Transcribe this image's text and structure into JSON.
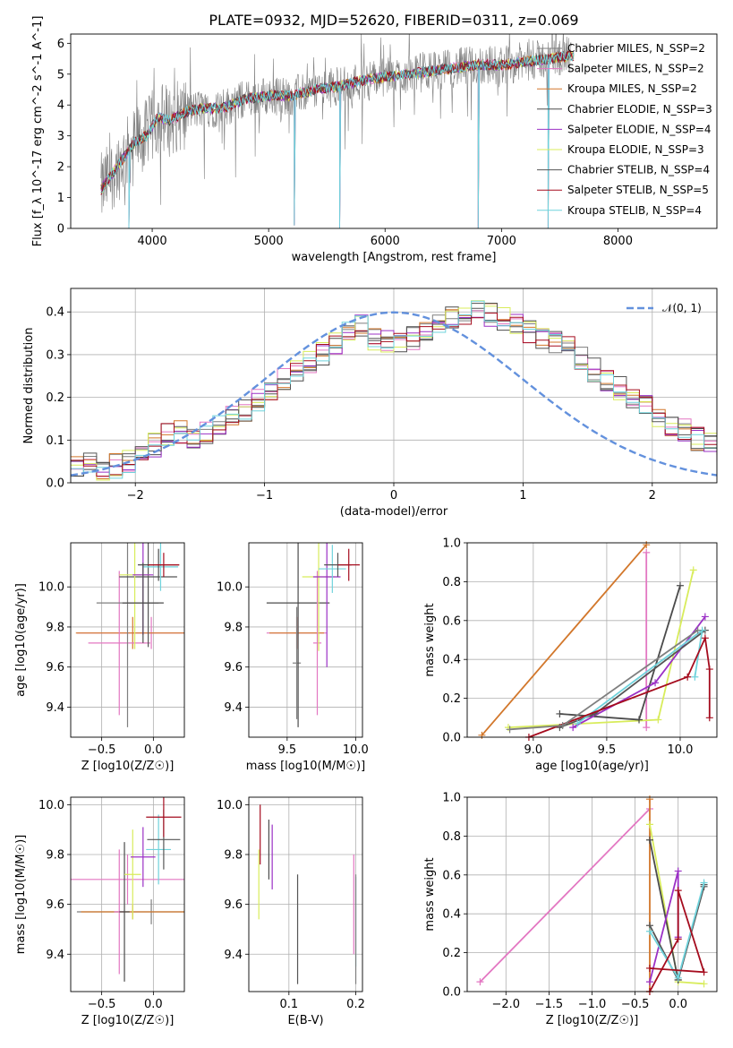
{
  "figure_title": "PLATE=0932, MJD=52620, FIBERID=0311, z=0.069",
  "model_names": [
    "Chabrier MILES",
    "Salpeter MILES",
    "Kroupa MILES",
    "Chabrier ELODIE",
    "Salpeter ELODIE",
    "Kroupa ELODIE",
    "Chabrier STELIB",
    "Salpeter STELIB",
    "Kroupa STELIB"
  ],
  "model_colors": [
    "#7f7f7f",
    "#e377c2",
    "#d2772b",
    "#4b4b4b",
    "#9b30c6",
    "#d8ec5b",
    "#555555",
    "#a50c1e",
    "#6fd3dc"
  ],
  "chart_data": [
    {
      "id": "spectrum",
      "type": "line",
      "xlabel": "wavelength [Angstrom, rest frame]",
      "ylabel": "Flux [f_λ 10^-17 erg cm^-2 s^-1 A^-1]",
      "xlim": [
        3300,
        8850
      ],
      "ylim": [
        0,
        6.3
      ],
      "xticks": [
        4000,
        5000,
        6000,
        7000,
        8000
      ],
      "yticks": [
        0,
        1,
        2,
        3,
        4,
        5,
        6
      ],
      "grid": false,
      "legend": [
        "Chabrier MILES, N_SSP=2",
        "Salpeter MILES, N_SSP=2",
        "Kroupa MILES, N_SSP=2",
        "Chabrier ELODIE, N_SSP=3",
        "Salpeter ELODIE, N_SSP=4",
        "Kroupa ELODIE, N_SSP=3",
        "Chabrier STELIB, N_SSP=4",
        "Salpeter STELIB, N_SSP=5",
        "Kroupa STELIB, N_SSP=4"
      ],
      "legend_placement": "right",
      "data_trend": {
        "x": [
          3550,
          3700,
          3850,
          3950,
          4050,
          4150,
          4300,
          4450,
          4600,
          4800,
          5000,
          5200,
          5400,
          5600,
          5800,
          6000,
          6200,
          6400,
          6600,
          6800,
          7000,
          7200,
          7400,
          7600,
          7800,
          8000,
          8200,
          8400
        ],
        "y": [
          1.2,
          2.0,
          2.8,
          3.0,
          3.6,
          3.5,
          3.8,
          3.9,
          3.9,
          4.2,
          4.3,
          4.3,
          4.5,
          4.6,
          4.8,
          4.9,
          5.0,
          5.1,
          5.2,
          5.3,
          5.3,
          5.4,
          5.5,
          5.6,
          5.6,
          5.7,
          5.8,
          5.8
        ]
      },
      "dips": [
        [
          5610,
          0
        ],
        [
          6800,
          0
        ],
        [
          7400,
          0
        ],
        [
          5220,
          0.1
        ],
        [
          3800,
          0
        ]
      ]
    },
    {
      "id": "residuals",
      "type": "histogram",
      "xlabel": "(data-model)/error",
      "ylabel": "Normed distribution",
      "xlim": [
        -2.5,
        2.5
      ],
      "ylim": [
        0,
        0.455
      ],
      "xticks": [
        -2,
        -1,
        0,
        1,
        2
      ],
      "yticks": [
        0.0,
        0.1,
        0.2,
        0.3,
        0.4
      ],
      "grid": true,
      "legend": [
        "𝒩(0, 1)"
      ],
      "legend_placement": "top-right",
      "bin_width": 0.1,
      "bin_start": -2.5,
      "envelope": [
        0.04,
        0.04,
        0.035,
        0.04,
        0.05,
        0.07,
        0.09,
        0.11,
        0.12,
        0.11,
        0.12,
        0.135,
        0.15,
        0.17,
        0.19,
        0.22,
        0.245,
        0.26,
        0.28,
        0.3,
        0.33,
        0.36,
        0.37,
        0.34,
        0.33,
        0.33,
        0.34,
        0.35,
        0.37,
        0.39,
        0.4,
        0.405,
        0.395,
        0.385,
        0.37,
        0.35,
        0.34,
        0.33,
        0.32,
        0.295,
        0.265,
        0.245,
        0.22,
        0.2,
        0.18,
        0.16,
        0.14,
        0.12,
        0.1,
        0.09,
        0.08,
        0.075,
        0.075,
        0.07,
        0.06,
        0.055,
        0.05,
        0.045,
        0.04,
        0.035
      ]
    },
    {
      "id": "age-vs-Z",
      "type": "scatter",
      "xlabel": "Z [log10(Z/Z☉)]",
      "ylabel": "age [log10(age/yr)]",
      "xlim": [
        -0.8,
        0.3
      ],
      "ylim": [
        9.25,
        10.22
      ],
      "xticks": [
        -0.5,
        0.0
      ],
      "yticks": [
        9.4,
        9.6,
        9.8,
        10.0
      ],
      "grid": true,
      "points": [
        {
          "x": -0.02,
          "y": 9.77,
          "xerr": 0.72,
          "yerr": 0.08,
          "color": 1
        },
        {
          "x": -0.2,
          "y": 9.77,
          "xerr": 0.55,
          "yerr": 0.08,
          "color": 2
        },
        {
          "x": -0.33,
          "y": 9.72,
          "xerr": 0.3,
          "yerr": 0.36,
          "color": 1
        },
        {
          "x": -0.25,
          "y": 9.92,
          "xerr": 0.3,
          "yerr": 0.62,
          "color": 0
        },
        {
          "x": -0.05,
          "y": 10.05,
          "xerr": 0.28,
          "yerr": 0.35,
          "color": 6
        },
        {
          "x": -0.18,
          "y": 10.06,
          "xerr": 0.15,
          "yerr": 0.37,
          "color": 5
        },
        {
          "x": -0.1,
          "y": 10.06,
          "xerr": 0.1,
          "yerr": 0.3,
          "color": 4
        },
        {
          "x": 0.07,
          "y": 10.1,
          "xerr": 0.17,
          "yerr": 0.12,
          "color": 8
        },
        {
          "x": 0.05,
          "y": 10.11,
          "xerr": 0.2,
          "yerr": 0.08,
          "color": 3
        },
        {
          "x": 0.1,
          "y": 10.11,
          "xerr": 0.15,
          "yerr": 0.06,
          "color": 7
        },
        {
          "x": -0.1,
          "y": 9.92,
          "xerr": 0.2,
          "yerr": 0.2,
          "color": 3
        }
      ]
    },
    {
      "id": "age-vs-mass",
      "type": "scatter",
      "xlabel": "mass [log10(M/M☉)]",
      "ylabel": "",
      "xlim": [
        9.22,
        10.05
      ],
      "ylim": [
        9.25,
        10.22
      ],
      "xticks": [
        9.5,
        10.0
      ],
      "yticks": [
        9.4,
        9.6,
        9.8,
        10.0
      ],
      "grid": true,
      "points": [
        {
          "x": 9.57,
          "y": 9.77,
          "xerr": 0.22,
          "yerr": 0.08,
          "color": 1
        },
        {
          "x": 9.57,
          "y": 9.77,
          "xerr": 0.2,
          "yerr": 0.08,
          "color": 2
        },
        {
          "x": 9.57,
          "y": 9.62,
          "xerr": 0.03,
          "yerr": 0.28,
          "color": 0
        },
        {
          "x": 9.58,
          "y": 9.92,
          "xerr": 0.23,
          "yerr": 0.62,
          "color": 3
        },
        {
          "x": 9.72,
          "y": 9.72,
          "xerr": 0.03,
          "yerr": 0.36,
          "color": 1
        },
        {
          "x": 9.73,
          "y": 10.05,
          "xerr": 0.12,
          "yerr": 0.37,
          "color": 5
        },
        {
          "x": 9.79,
          "y": 10.05,
          "xerr": 0.1,
          "yerr": 0.45,
          "color": 4
        },
        {
          "x": 9.83,
          "y": 10.09,
          "xerr": 0.1,
          "yerr": 0.12,
          "color": 8
        },
        {
          "x": 9.87,
          "y": 10.11,
          "xerr": 0.1,
          "yerr": 0.06,
          "color": 6
        },
        {
          "x": 9.95,
          "y": 10.11,
          "xerr": 0.08,
          "yerr": 0.08,
          "color": 7
        }
      ]
    },
    {
      "id": "weight-vs-age",
      "type": "line",
      "xlabel": "age [log10(age/yr)]",
      "ylabel": "mass weight",
      "xlim": [
        8.55,
        10.25
      ],
      "ylim": [
        0,
        1.0
      ],
      "xticks": [
        9.0,
        9.5,
        10.0
      ],
      "yticks": [
        0.0,
        0.2,
        0.4,
        0.6,
        0.8,
        1.0
      ],
      "grid": true,
      "series": [
        {
          "color": 2,
          "x": [
            8.65,
            9.77
          ],
          "y": [
            0.01,
            0.99
          ]
        },
        {
          "color": 1,
          "x": [
            9.77,
            9.77
          ],
          "y": [
            0.05,
            0.95
          ]
        },
        {
          "color": 5,
          "x": [
            8.83,
            9.85,
            10.09
          ],
          "y": [
            0.05,
            0.09,
            0.86
          ]
        },
        {
          "color": 3,
          "x": [
            9.18,
            9.72,
            10.0
          ],
          "y": [
            0.12,
            0.09,
            0.78
          ]
        },
        {
          "color": 4,
          "x": [
            9.27,
            9.83,
            10.17
          ],
          "y": [
            0.05,
            0.28,
            0.62
          ]
        },
        {
          "color": 6,
          "x": [
            9.18,
            9.42,
            10.17
          ],
          "y": [
            0.05,
            0.12,
            0.55
          ]
        },
        {
          "color": 8,
          "x": [
            9.3,
            10.15,
            10.1
          ],
          "y": [
            0.07,
            0.55,
            0.31
          ]
        },
        {
          "color": 7,
          "x": [
            8.97,
            10.05,
            10.17,
            10.2,
            10.2
          ],
          "y": [
            0.0,
            0.31,
            0.51,
            0.35,
            0.1
          ]
        },
        {
          "color": 0,
          "x": [
            8.84,
            9.2,
            10.12
          ],
          "y": [
            0.04,
            0.06,
            0.55
          ]
        }
      ]
    },
    {
      "id": "mass-vs-Z",
      "type": "scatter",
      "xlabel": "Z [log10(Z/Z☉)]",
      "ylabel": "mass [log10(M/M☉)]",
      "xlim": [
        -0.8,
        0.3
      ],
      "ylim": [
        9.25,
        10.03
      ],
      "xticks": [
        -0.5,
        0.0
      ],
      "yticks": [
        9.4,
        9.6,
        9.8,
        10.0
      ],
      "grid": true,
      "points": [
        {
          "x": -0.25,
          "y": 9.7,
          "xerr": 0.55,
          "yerr": 0.1,
          "color": 1
        },
        {
          "x": -0.02,
          "y": 9.57,
          "xerr": 0.72,
          "yerr": 0.05,
          "color": 0
        },
        {
          "x": -0.2,
          "y": 9.57,
          "xerr": 0.5,
          "yerr": 0.03,
          "color": 2
        },
        {
          "x": -0.33,
          "y": 9.57,
          "xerr": 0.05,
          "yerr": 0.25,
          "color": 1
        },
        {
          "x": -0.28,
          "y": 9.57,
          "xerr": 0.05,
          "yerr": 0.28,
          "color": 3
        },
        {
          "x": -0.2,
          "y": 9.72,
          "xerr": 0.08,
          "yerr": 0.18,
          "color": 5
        },
        {
          "x": -0.1,
          "y": 9.79,
          "xerr": 0.12,
          "yerr": 0.12,
          "color": 4
        },
        {
          "x": 0.05,
          "y": 9.82,
          "xerr": 0.12,
          "yerr": 0.14,
          "color": 8
        },
        {
          "x": 0.1,
          "y": 9.86,
          "xerr": 0.16,
          "yerr": 0.12,
          "color": 6
        },
        {
          "x": 0.1,
          "y": 9.95,
          "xerr": 0.17,
          "yerr": 0.08,
          "color": 7
        }
      ]
    },
    {
      "id": "mass-vs-EBV",
      "type": "scatter",
      "xlabel": "E(B-V)",
      "ylabel": "",
      "xlim": [
        0.04,
        0.21
      ],
      "ylim": [
        9.25,
        10.03
      ],
      "xticks": [
        0.1,
        0.2
      ],
      "yticks": [
        9.4,
        9.6,
        9.8,
        10.0
      ],
      "grid": true,
      "points": [
        {
          "x": 0.055,
          "y": 9.68,
          "xerr": 0,
          "yerr": 0.14,
          "color": 5
        },
        {
          "x": 0.057,
          "y": 9.88,
          "xerr": 0,
          "yerr": 0.12,
          "color": 7
        },
        {
          "x": 0.07,
          "y": 9.82,
          "xerr": 0,
          "yerr": 0.12,
          "color": 3
        },
        {
          "x": 0.075,
          "y": 9.79,
          "xerr": 0,
          "yerr": 0.13,
          "color": 4
        },
        {
          "x": 0.113,
          "y": 9.5,
          "xerr": 0,
          "yerr": 0.22,
          "color": 6
        },
        {
          "x": 0.197,
          "y": 9.6,
          "xerr": 0,
          "yerr": 0.2,
          "color": 1
        },
        {
          "x": 0.2,
          "y": 9.53,
          "xerr": 0,
          "yerr": 0.18,
          "color": 8
        },
        {
          "x": 0.2,
          "y": 9.5,
          "xerr": 0,
          "yerr": 0.22,
          "color": 0
        }
      ]
    },
    {
      "id": "weight-vs-Z",
      "type": "line",
      "xlabel": "Z [log10(Z/Z☉)]",
      "ylabel": "mass weight",
      "xlim": [
        -2.45,
        0.45
      ],
      "ylim": [
        0,
        1.0
      ],
      "xticks": [
        -2.0,
        -1.5,
        -1.0,
        -0.5,
        0.0
      ],
      "yticks": [
        0.0,
        0.2,
        0.4,
        0.6,
        0.8,
        1.0
      ],
      "grid": true,
      "series": [
        {
          "color": 1,
          "x": [
            -2.3,
            -0.33
          ],
          "y": [
            0.05,
            0.94
          ]
        },
        {
          "color": 2,
          "x": [
            -0.33,
            -0.33
          ],
          "y": [
            0.0,
            0.99
          ]
        },
        {
          "color": 5,
          "x": [
            -0.33,
            0.0,
            0.3
          ],
          "y": [
            0.86,
            0.05,
            0.04
          ]
        },
        {
          "color": 3,
          "x": [
            -0.33,
            0.0,
            0.3
          ],
          "y": [
            0.78,
            0.06,
            0.54
          ]
        },
        {
          "color": 4,
          "x": [
            -0.33,
            0.0,
            0.0
          ],
          "y": [
            0.05,
            0.62,
            0.28
          ]
        },
        {
          "color": 6,
          "x": [
            -0.33,
            0.0,
            0.3
          ],
          "y": [
            0.34,
            0.06,
            0.55
          ]
        },
        {
          "color": 8,
          "x": [
            -0.33,
            0.0,
            0.3
          ],
          "y": [
            0.31,
            0.07,
            0.56
          ]
        },
        {
          "color": 7,
          "x": [
            -0.33,
            0.0,
            0.0,
            0.3,
            -0.33
          ],
          "y": [
            0.0,
            0.27,
            0.52,
            0.1,
            0.12
          ]
        }
      ]
    }
  ]
}
